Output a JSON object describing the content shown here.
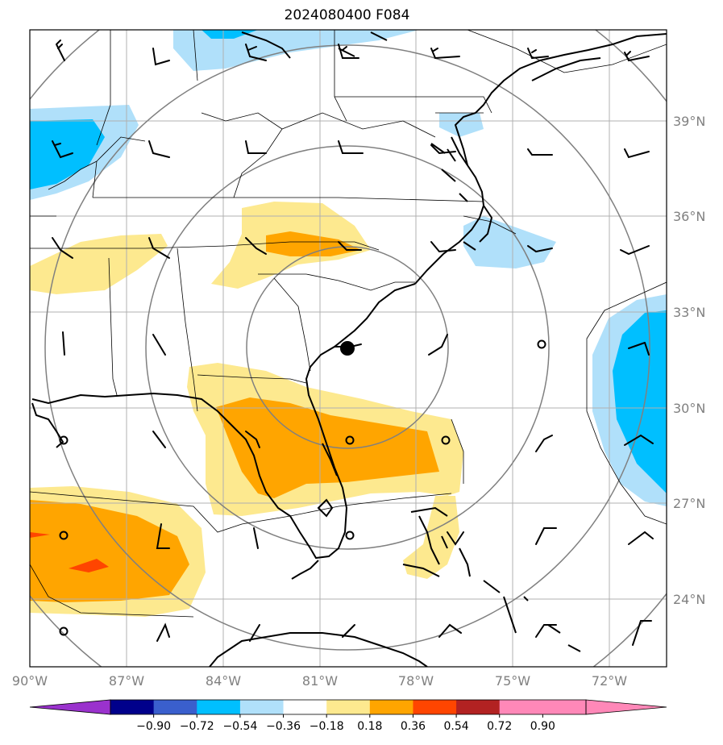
{
  "title": "2024080400 F084",
  "latitude_labels": [
    "39°N",
    "36°N",
    "33°N",
    "30°N",
    "27°N",
    "24°N"
  ],
  "longitude_labels": [
    "90°W",
    "87°W",
    "84°W",
    "81°W",
    "78°W",
    "75°W",
    "72°W"
  ],
  "colorbar": {
    "tick_labels": [
      "−0.90",
      "−0.72",
      "−0.54",
      "−0.36",
      "−0.18",
      "0.18",
      "0.36",
      "0.54",
      "0.72",
      "0.90"
    ],
    "colors": [
      "#9a32cd",
      "#00008b",
      "#3a5fcd",
      "#00bfff",
      "#b0e0fa",
      "#ffffff",
      "#fde98f",
      "#ffa500",
      "#ff4500",
      "#b22222",
      "#ff88b8",
      "#ff88b8"
    ]
  },
  "storm_center": {
    "lon": -79.8,
    "lat": 31.9
  },
  "map_colors": {
    "gridline": "#b0b0b0",
    "range_ring": "#808080",
    "coast": "#000000"
  },
  "layers": [
    "filled-anomaly-contours",
    "wind-barbs",
    "range-rings",
    "coastlines",
    "state-borders"
  ]
}
